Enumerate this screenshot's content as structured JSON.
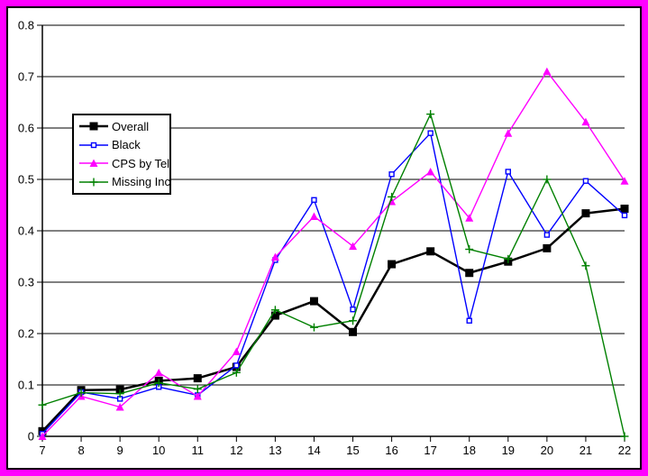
{
  "frame": {
    "outer_border_color": "#FF00FF",
    "inner_border_color": "#000000",
    "background": "#FFFFFF"
  },
  "chart_data": {
    "type": "line",
    "title": "",
    "xlabel": "",
    "ylabel": "",
    "grid": true,
    "legend_position": "upper-left-inside",
    "xlim": [
      7,
      22
    ],
    "ylim": [
      0,
      0.8
    ],
    "ytick_step": 0.1,
    "ytick_labels": [
      "0",
      "0.1",
      "0.2",
      "0.3",
      "0.4",
      "0.5",
      "0.6",
      "0.7",
      "0.8"
    ],
    "x": [
      7,
      8,
      9,
      10,
      11,
      12,
      13,
      14,
      15,
      16,
      17,
      18,
      19,
      20,
      21,
      22
    ],
    "series": [
      {
        "name": "Overall",
        "color": "#000000",
        "marker": "square",
        "line_width": 2.5,
        "values": [
          0.01,
          0.09,
          0.091,
          0.108,
          0.113,
          0.135,
          0.235,
          0.263,
          0.203,
          0.335,
          0.36,
          0.318,
          0.34,
          0.366,
          0.434,
          0.443
        ]
      },
      {
        "name": "Black",
        "color": "#0000FF",
        "marker": "small-square",
        "line_width": 1.4,
        "values": [
          0.005,
          0.086,
          0.073,
          0.096,
          0.08,
          0.138,
          0.343,
          0.46,
          0.247,
          0.51,
          0.59,
          0.225,
          0.515,
          0.392,
          0.497,
          0.43
        ]
      },
      {
        "name": "CPS by Tel",
        "color": "#FF00FF",
        "marker": "triangle",
        "line_width": 1.4,
        "values": [
          0.0,
          0.078,
          0.057,
          0.124,
          0.078,
          0.165,
          0.349,
          0.428,
          0.37,
          0.457,
          0.515,
          0.425,
          0.59,
          0.71,
          0.612,
          0.497
        ]
      },
      {
        "name": "Missing Inc",
        "color": "#008000",
        "marker": "plus",
        "line_width": 1.4,
        "values": [
          0.061,
          0.085,
          0.083,
          0.104,
          0.092,
          0.124,
          0.246,
          0.212,
          0.225,
          0.466,
          0.627,
          0.364,
          0.345,
          0.5,
          0.332,
          0.0
        ]
      }
    ]
  }
}
